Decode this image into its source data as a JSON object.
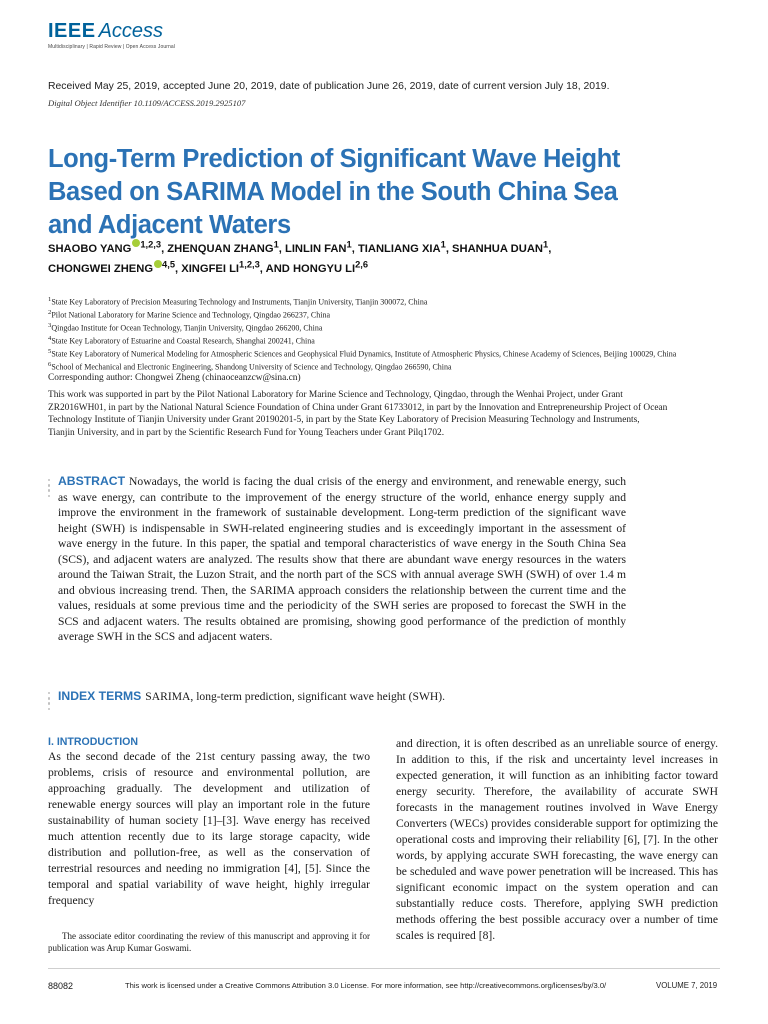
{
  "journal": {
    "name_bold": "IEEE",
    "name_italic": "Access",
    "tagline": "Multidisciplinary | Rapid Review | Open Access Journal"
  },
  "received": "Received May 25, 2019, accepted June 20, 2019, date of publication June 26, 2019, date of current version July 18, 2019.",
  "doi": "Digital Object Identifier 10.1109/ACCESS.2019.2925107",
  "title": "Long-Term Prediction of Significant Wave Height Based on SARIMA Model in the South China Sea and Adjacent Waters",
  "authors": [
    {
      "name": "SHAOBO YANG",
      "sup": "1,2,3",
      "orcid": true,
      "sep": ", "
    },
    {
      "name": "ZHENQUAN ZHANG",
      "sup": "1",
      "orcid": false,
      "sep": ", "
    },
    {
      "name": "LINLIN FAN",
      "sup": "1",
      "orcid": false,
      "sep": ", "
    },
    {
      "name": "TIANLIANG XIA",
      "sup": "1",
      "orcid": false,
      "sep": ", "
    },
    {
      "name": "SHANHUA DUAN",
      "sup": "1",
      "orcid": false,
      "sep": ","
    },
    {
      "name": "CHONGWEI ZHENG",
      "sup": "4,5",
      "orcid": true,
      "sep": ", "
    },
    {
      "name": "XINGFEI LI",
      "sup": "1,2,3",
      "orcid": false,
      "sep": ", "
    },
    {
      "name": "AND HONGYU LI",
      "sup": "2,6",
      "orcid": false,
      "sep": ""
    }
  ],
  "affiliations": [
    {
      "num": "1",
      "text": "State Key Laboratory of Precision Measuring Technology and Instruments, Tianjin University, Tianjin 300072, China"
    },
    {
      "num": "2",
      "text": "Pilot National Laboratory for Marine Science and Technology, Qingdao 266237, China"
    },
    {
      "num": "3",
      "text": "Qingdao Institute for Ocean Technology, Tianjin University, Qingdao 266200, China"
    },
    {
      "num": "4",
      "text": "State Key Laboratory of Estuarine and Coastal Research, Shanghai 200241, China"
    },
    {
      "num": "5",
      "text": "State Key Laboratory of Numerical Modeling for Atmospheric Sciences and Geophysical Fluid Dynamics, Institute of Atmospheric Physics, Chinese Academy of Sciences, Beijing 100029, China"
    },
    {
      "num": "6",
      "text": "School of Mechanical and Electronic Engineering, Shandong University of Science and Technology, Qingdao 266590, China"
    }
  ],
  "corresponding": "Corresponding author: Chongwei Zheng (chinaoceanzcw@sina.cn)",
  "support": "This work was supported in part by the Pilot National Laboratory for Marine Science and Technology, Qingdao, through the Wenhai Project, under Grant ZR2016WH01, in part by the National Natural Science Foundation of China under Grant 61733012, in part by the Innovation and Entrepreneurship Project of Ocean Technology Institute of Tianjin University under Grant 20190201-5, in part by the State Key Laboratory of Precision Measuring Technology and Instruments, Tianjin University, and in part by the Scientific Research Fund for Young Teachers under Grant Pilq1702.",
  "abstract": {
    "label": "ABSTRACT",
    "text": "Nowadays, the world is facing the dual crisis of the energy and environment, and renewable energy, such as wave energy, can contribute to the improvement of the energy structure of the world, enhance energy supply and improve the environment in the framework of sustainable development. Long-term prediction of the significant wave height (SWH) is indispensable in SWH-related engineering studies and is exceedingly important in the assessment of wave energy in the future. In this paper, the spatial and temporal characteristics of wave energy in the South China Sea (SCS), and adjacent waters are analyzed. The results show that there are abundant wave energy resources in the waters around the Taiwan Strait, the Luzon Strait, and the north part of the SCS with annual average SWH (SWH) of over 1.4 m and obvious increasing trend. Then, the SARIMA approach considers the relationship between the current time and the values, residuals at some previous time and the periodicity of the SWH series are proposed to forecast the SWH in the SCS and adjacent waters. The results obtained are promising, showing good performance of the prediction of monthly average SWH in the SCS and adjacent waters."
  },
  "index_terms": {
    "label": "INDEX TERMS",
    "text": "SARIMA, long-term prediction, significant wave height (SWH)."
  },
  "intro": {
    "heading": "I. INTRODUCTION",
    "left_text": "As the second decade of the 21st century passing away, the two problems, crisis of resource and environmental pollution, are approaching gradually. The development and utilization of renewable energy sources will play an important role in the future sustainability of human society [1]–[3]. Wave energy has received much attention recently due to its large storage capacity, wide distribution and pollution-free, as well as the conservation of terrestrial resources and needing no immigration [4], [5]. Since the temporal and spatial variability of wave height, highly irregular frequency",
    "right_text": "and direction, it is often described as an unreliable source of energy. In addition to this, if the risk and uncertainty level increases in expected generation, it will function as an inhibiting factor toward energy security. Therefore, the availability of accurate SWH forecasts in the management routines involved in Wave Energy Converters (WECs) provides considerable support for optimizing the operational costs and improving their reliability [6], [7]. In the other words, by applying accurate SWH forecasting, the wave energy can be scheduled and wave power penetration will be increased. This has significant economic impact on the system operation and can substantially reduce costs. Therefore, applying SWH prediction methods offering the best possible accuracy over a number of time scales is required [8]."
  },
  "footnote": "The associate editor coordinating the review of this manuscript and approving it for publication was Arup Kumar Goswami.",
  "footer": {
    "page": "88082",
    "license": "This work is licensed under a Creative Commons Attribution 3.0 License. For more information, see http://creativecommons.org/licenses/by/3.0/",
    "volume": "VOLUME 7, 2019"
  }
}
